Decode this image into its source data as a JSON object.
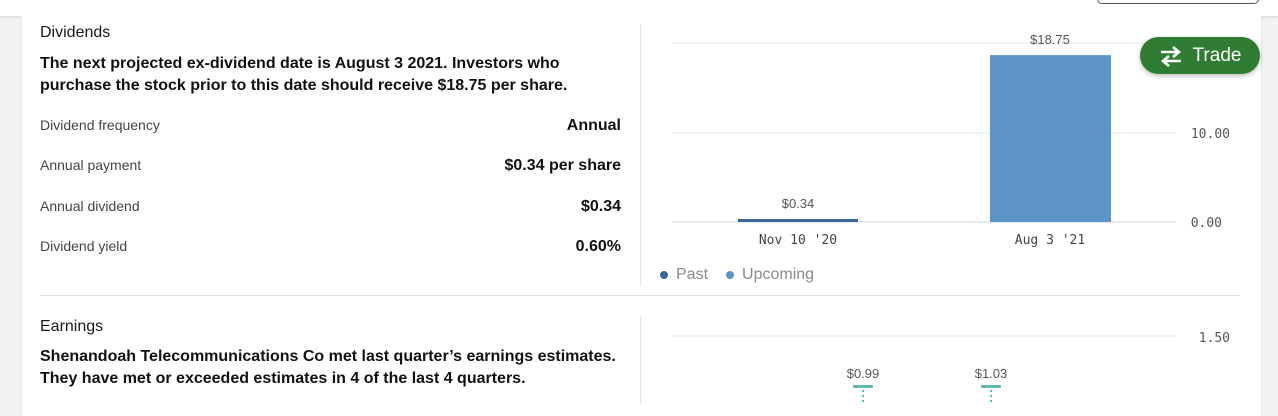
{
  "dividends": {
    "title": "Dividends",
    "lead": "The next projected ex-dividend date is August 3 2021. Investors who purchase the stock prior to this date should receive $18.75 per share.",
    "rows": [
      {
        "label": "Dividend frequency",
        "value": "Annual"
      },
      {
        "label": "Annual payment",
        "value": "$0.34 per share"
      },
      {
        "label": "Annual dividend",
        "value": "$0.34"
      },
      {
        "label": "Dividend yield",
        "value": "0.60%"
      }
    ],
    "legend": {
      "past": "Past",
      "upcoming": "Upcoming"
    }
  },
  "earnings": {
    "title": "Earnings",
    "lead": "Shenandoah Telecommunications Co met last quarter’s earnings estimates. They have met or exceeded estimates in 4 of the last 4 quarters."
  },
  "trade_button": {
    "label": "Trade",
    "icon": "swap-arrows-icon"
  },
  "colors": {
    "past": "#3a6796",
    "upcoming": "#5b95c7",
    "trade": "#2e7d32",
    "earnings_marker": "#5cbcb0"
  },
  "chart_data": [
    {
      "type": "bar",
      "categories": [
        "Nov 10 '20",
        "Aug 3 '21"
      ],
      "values": [
        0.34,
        18.75
      ],
      "data_labels": [
        "$0.34",
        "$18.75"
      ],
      "series_kind": [
        "past",
        "upcoming"
      ],
      "y_ticks": [
        0,
        10,
        20
      ],
      "y_tick_labels": [
        "0.00",
        "10.00",
        ""
      ],
      "ylim": [
        0,
        20
      ],
      "legend": "bottom-left",
      "grid": true
    },
    {
      "type": "scatter",
      "values": [
        0.99,
        1.03
      ],
      "data_labels": [
        "$0.99",
        "$1.03"
      ],
      "y_ticks": [
        1.5
      ],
      "y_tick_labels": [
        "1.50"
      ],
      "grid": true
    }
  ]
}
